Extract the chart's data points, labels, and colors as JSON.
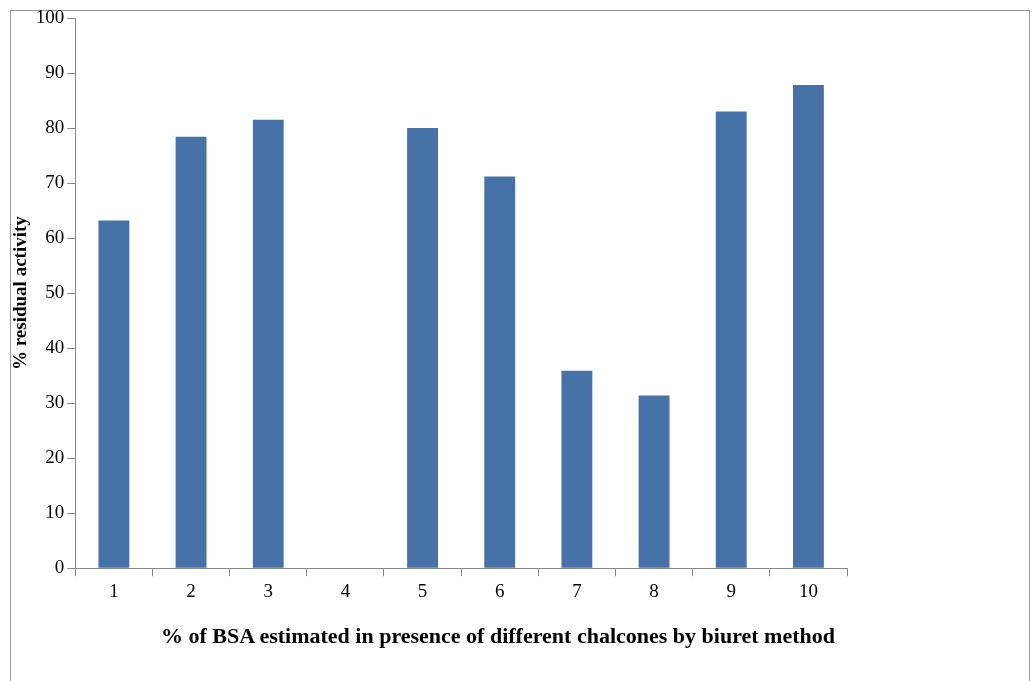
{
  "chart_data": {
    "type": "bar",
    "ylabel": "% residual activity",
    "xlabel": "% of BSA estimated in presence of different chalcones by biuret method",
    "categories": [
      "1",
      "2",
      "3",
      "4",
      "5",
      "6",
      "7",
      "8",
      "9",
      "10"
    ],
    "values": [
      63.2,
      78.4,
      81.5,
      0,
      80.0,
      71.2,
      35.9,
      31.4,
      83.0,
      87.8
    ],
    "color": "#4672a8",
    "ylim": [
      0,
      100
    ],
    "yticks": [
      0,
      10,
      20,
      30,
      40,
      50,
      60,
      70,
      80,
      90,
      100
    ],
    "grid": false,
    "legend": false
  }
}
